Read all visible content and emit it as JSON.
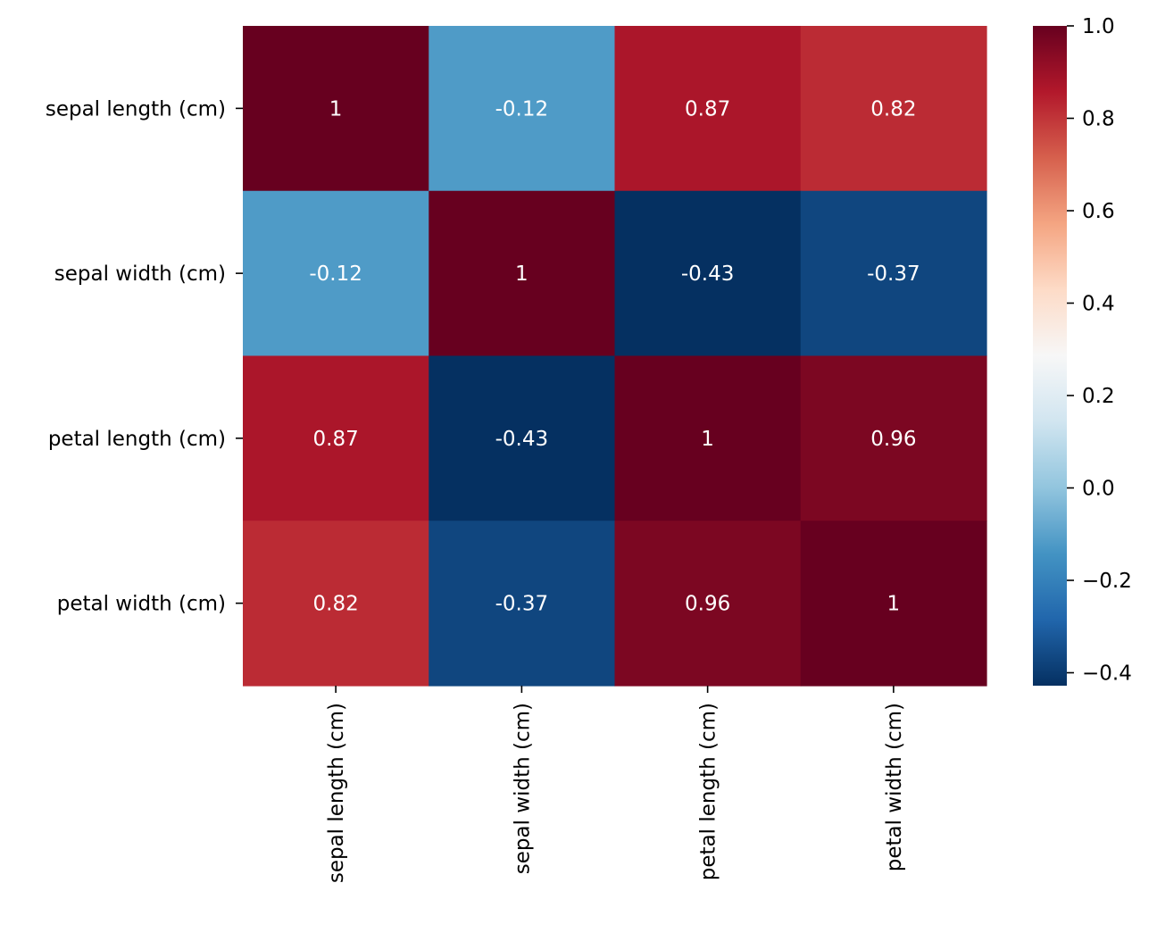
{
  "chart_data": {
    "type": "heatmap",
    "x_categories": [
      "sepal length (cm)",
      "sepal width (cm)",
      "petal length (cm)",
      "petal width (cm)"
    ],
    "y_categories": [
      "sepal length (cm)",
      "sepal width (cm)",
      "petal length (cm)",
      "petal width (cm)"
    ],
    "values": [
      [
        1,
        -0.12,
        0.87,
        0.82
      ],
      [
        -0.12,
        1,
        -0.43,
        -0.37
      ],
      [
        0.87,
        -0.43,
        1,
        0.96
      ],
      [
        0.82,
        -0.37,
        0.96,
        1
      ]
    ],
    "annotations": [
      [
        "1",
        "-0.12",
        "0.87",
        "0.82"
      ],
      [
        "-0.12",
        "1",
        "-0.43",
        "-0.37"
      ],
      [
        "0.87",
        "-0.43",
        "1",
        "0.96"
      ],
      [
        "0.82",
        "-0.37",
        "0.96",
        "1"
      ]
    ],
    "colormap": "RdBu_r",
    "colorbar": {
      "vmin": -0.428,
      "vmax": 1.0,
      "ticks": [
        1.0,
        0.8,
        0.6,
        0.4,
        0.2,
        0.0,
        -0.2,
        -0.4
      ],
      "tick_labels": [
        "1.0",
        "0.8",
        "0.6",
        "0.4",
        "0.2",
        "0.0",
        "−0.2",
        "−0.4"
      ]
    },
    "cell_text_color": "#ffffff",
    "title": "",
    "xlabel": "",
    "ylabel": ""
  }
}
